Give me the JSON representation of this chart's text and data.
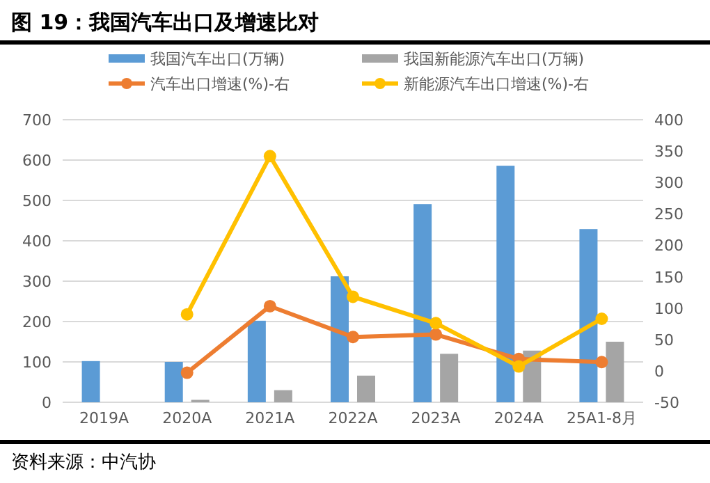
{
  "chart_data": {
    "type": "bar",
    "title": "图 19：我国汽车出口及增速比对",
    "categories": [
      "2019A",
      "2020A",
      "2021A",
      "2022A",
      "2023A",
      "2024A",
      "25A1-8月"
    ],
    "series": [
      {
        "name": "我国汽车出口(万辆)",
        "color": "#5b9bd5",
        "values": [
          102,
          100,
          202,
          312,
          491,
          586,
          429
        ]
      },
      {
        "name": "我国新能源汽车出口(万辆)",
        "color": "#a5a5a5",
        "values": [
          null,
          6,
          30,
          66,
          120,
          128,
          150
        ]
      },
      {
        "name": "汽车出口增速(%)-右",
        "type": "line",
        "axis": "y2",
        "color": "#ed7d31",
        "values": [
          null,
          -3,
          103,
          54,
          58,
          19,
          14
        ]
      },
      {
        "name": "新能源汽车出口增速(%)-右",
        "type": "line",
        "axis": "y2",
        "color": "#ffc000",
        "values": [
          null,
          90,
          342,
          118,
          76,
          7,
          83
        ]
      }
    ],
    "ylim": [
      0,
      700
    ],
    "yticks": [
      0,
      100,
      200,
      300,
      400,
      500,
      600,
      700
    ],
    "y2lim": [
      -50,
      400
    ],
    "y2ticks": [
      -50,
      0,
      50,
      100,
      150,
      200,
      250,
      300,
      350,
      400
    ],
    "grid": "y",
    "legend": "top",
    "marker": "circle",
    "annotations": [
      "资料来源：中汽协"
    ]
  }
}
